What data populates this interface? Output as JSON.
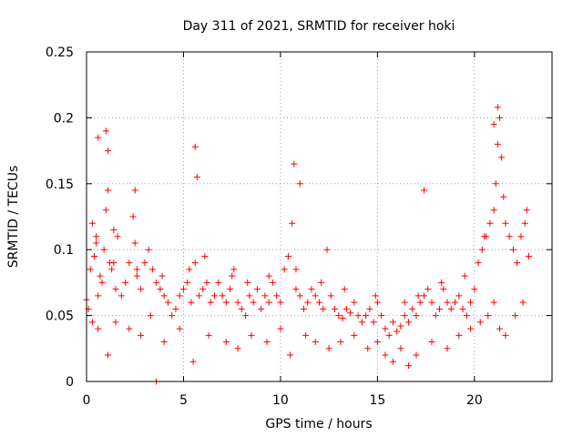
{
  "chart_data": {
    "type": "scatter",
    "title": "Day 311 of 2021, SRMTID for receiver hoki",
    "xlabel": "GPS time / hours",
    "ylabel": "SRMTID / TECUs",
    "xlim": [
      0,
      24
    ],
    "ylim": [
      0,
      0.25
    ],
    "x_ticks": [
      0,
      5,
      10,
      15,
      20
    ],
    "x_tick_labels": [
      "0",
      "5",
      "10",
      "15",
      "20"
    ],
    "y_ticks": [
      0,
      0.05,
      0.1,
      0.15,
      0.2,
      0.25
    ],
    "y_tick_labels": [
      "0",
      "0.05",
      "0.1",
      "0.15",
      "0.2",
      "0.25"
    ],
    "grid": true,
    "marker": "+",
    "color": "#ff0000",
    "series": [
      {
        "name": "SRMTID",
        "x": [
          0.0,
          0.1,
          0.2,
          0.3,
          0.4,
          0.5,
          0.6,
          0.7,
          0.8,
          0.9,
          1.0,
          1.1,
          1.2,
          1.3,
          1.4,
          1.5,
          1.6,
          1.8,
          2.0,
          2.2,
          2.4,
          2.5,
          2.6,
          2.8,
          3.0,
          3.2,
          3.4,
          3.6,
          3.8,
          4.0,
          4.2,
          4.4,
          4.6,
          4.8,
          5.0,
          5.2,
          5.4,
          5.6,
          5.8,
          6.0,
          6.2,
          6.4,
          6.6,
          6.8,
          7.0,
          7.2,
          7.4,
          7.6,
          7.8,
          8.0,
          8.2,
          8.4,
          8.6,
          8.8,
          9.0,
          9.2,
          9.4,
          9.6,
          9.8,
          10.0,
          10.2,
          10.4,
          10.6,
          10.8,
          11.0,
          11.2,
          11.4,
          11.6,
          11.8,
          12.0,
          12.2,
          12.4,
          12.6,
          12.8,
          13.0,
          13.2,
          13.4,
          13.6,
          13.8,
          14.0,
          14.2,
          14.4,
          14.6,
          14.8,
          15.0,
          15.2,
          15.4,
          15.6,
          15.8,
          16.0,
          16.2,
          16.4,
          16.6,
          16.8,
          17.0,
          17.2,
          17.4,
          17.6,
          17.8,
          18.0,
          18.2,
          18.4,
          18.6,
          18.8,
          19.0,
          19.2,
          19.4,
          19.6,
          19.8,
          20.0,
          20.2,
          20.4,
          20.6,
          20.8,
          21.0,
          21.1,
          21.2,
          21.3,
          21.4,
          21.6,
          21.8,
          22.0,
          22.2,
          22.4,
          22.6,
          22.8,
          0.6,
          1.0,
          1.1,
          2.5,
          3.6,
          5.6,
          5.7,
          10.7,
          11.0,
          17.4,
          21.0,
          21.2,
          0.3,
          0.6,
          1.1,
          1.5,
          2.2,
          2.8,
          3.3,
          4.0,
          4.8,
          5.5,
          6.3,
          7.2,
          7.8,
          8.5,
          9.3,
          10.0,
          10.5,
          11.3,
          11.8,
          12.5,
          13.1,
          13.8,
          14.5,
          15.0,
          15.4,
          15.8,
          16.2,
          16.6,
          17.0,
          17.8,
          18.6,
          19.2,
          19.8,
          20.3,
          20.7,
          21.0,
          21.3,
          21.6,
          22.1,
          22.5,
          0.5,
          1.4,
          2.6,
          3.9,
          5.3,
          6.1,
          7.5,
          8.3,
          9.4,
          10.8,
          12.1,
          13.3,
          14.9,
          16.4,
          17.1,
          18.3,
          19.5,
          20.5,
          21.5,
          22.7
        ],
        "y": [
          0.062,
          0.055,
          0.085,
          0.12,
          0.095,
          0.11,
          0.065,
          0.08,
          0.075,
          0.1,
          0.13,
          0.145,
          0.09,
          0.085,
          0.115,
          0.07,
          0.11,
          0.065,
          0.075,
          0.09,
          0.125,
          0.105,
          0.08,
          0.07,
          0.09,
          0.1,
          0.085,
          0.075,
          0.07,
          0.065,
          0.06,
          0.05,
          0.055,
          0.065,
          0.07,
          0.075,
          0.06,
          0.09,
          0.065,
          0.07,
          0.075,
          0.06,
          0.065,
          0.075,
          0.065,
          0.06,
          0.07,
          0.085,
          0.06,
          0.055,
          0.05,
          0.065,
          0.06,
          0.07,
          0.055,
          0.065,
          0.06,
          0.075,
          0.065,
          0.06,
          0.085,
          0.095,
          0.12,
          0.07,
          0.065,
          0.055,
          0.06,
          0.07,
          0.065,
          0.06,
          0.055,
          0.1,
          0.065,
          0.055,
          0.05,
          0.048,
          0.055,
          0.052,
          0.06,
          0.05,
          0.045,
          0.05,
          0.055,
          0.045,
          0.06,
          0.05,
          0.04,
          0.035,
          0.045,
          0.038,
          0.042,
          0.05,
          0.045,
          0.055,
          0.05,
          0.06,
          0.065,
          0.07,
          0.06,
          0.05,
          0.055,
          0.07,
          0.06,
          0.055,
          0.06,
          0.065,
          0.055,
          0.05,
          0.06,
          0.07,
          0.09,
          0.1,
          0.11,
          0.12,
          0.13,
          0.15,
          0.18,
          0.2,
          0.17,
          0.12,
          0.11,
          0.1,
          0.09,
          0.11,
          0.12,
          0.095,
          0.185,
          0.19,
          0.175,
          0.145,
          0.0,
          0.178,
          0.155,
          0.165,
          0.15,
          0.145,
          0.195,
          0.208,
          0.045,
          0.04,
          0.02,
          0.045,
          0.04,
          0.035,
          0.05,
          0.03,
          0.04,
          0.015,
          0.035,
          0.03,
          0.025,
          0.035,
          0.03,
          0.04,
          0.02,
          0.035,
          0.03,
          0.025,
          0.03,
          0.035,
          0.025,
          0.03,
          0.02,
          0.015,
          0.025,
          0.012,
          0.02,
          0.03,
          0.025,
          0.035,
          0.04,
          0.045,
          0.05,
          0.06,
          0.04,
          0.035,
          0.05,
          0.06,
          0.105,
          0.09,
          0.085,
          0.08,
          0.085,
          0.095,
          0.08,
          0.075,
          0.08,
          0.085,
          0.075,
          0.07,
          0.065,
          0.06,
          0.065,
          0.075,
          0.08,
          0.11,
          0.14,
          0.13
        ]
      }
    ]
  }
}
